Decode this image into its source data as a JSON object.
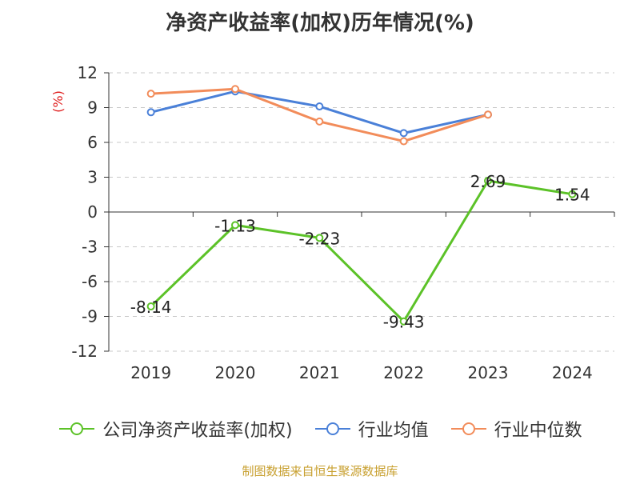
{
  "title": "净资产收益率(加权)历年情况(%)",
  "source": "制图数据来自恒生聚源数据库",
  "chart_data": {
    "type": "line",
    "categories": [
      "2019",
      "2020",
      "2021",
      "2022",
      "2023",
      "2024"
    ],
    "ylabel": "(%)",
    "ylim": [
      -12,
      12
    ],
    "yticks": [
      12,
      9,
      6,
      3,
      0,
      -3,
      -6,
      -9,
      -12
    ],
    "grid": true,
    "legend_position": "bottom",
    "series": [
      {
        "name": "公司净资产收益率(加权)",
        "color": "#5cc228",
        "values": [
          -8.14,
          -1.13,
          -2.23,
          -9.43,
          2.69,
          1.54
        ],
        "labels": [
          "-8.14",
          "-1.13",
          "-2.23",
          "-9.43",
          "2.69",
          "1.54"
        ]
      },
      {
        "name": "行业均值",
        "color": "#4a80d8",
        "values": [
          8.6,
          10.4,
          9.1,
          6.8,
          8.4,
          null
        ]
      },
      {
        "name": "行业中位数",
        "color": "#f28c5a",
        "values": [
          10.2,
          10.6,
          7.8,
          6.1,
          8.4,
          null
        ]
      }
    ]
  }
}
